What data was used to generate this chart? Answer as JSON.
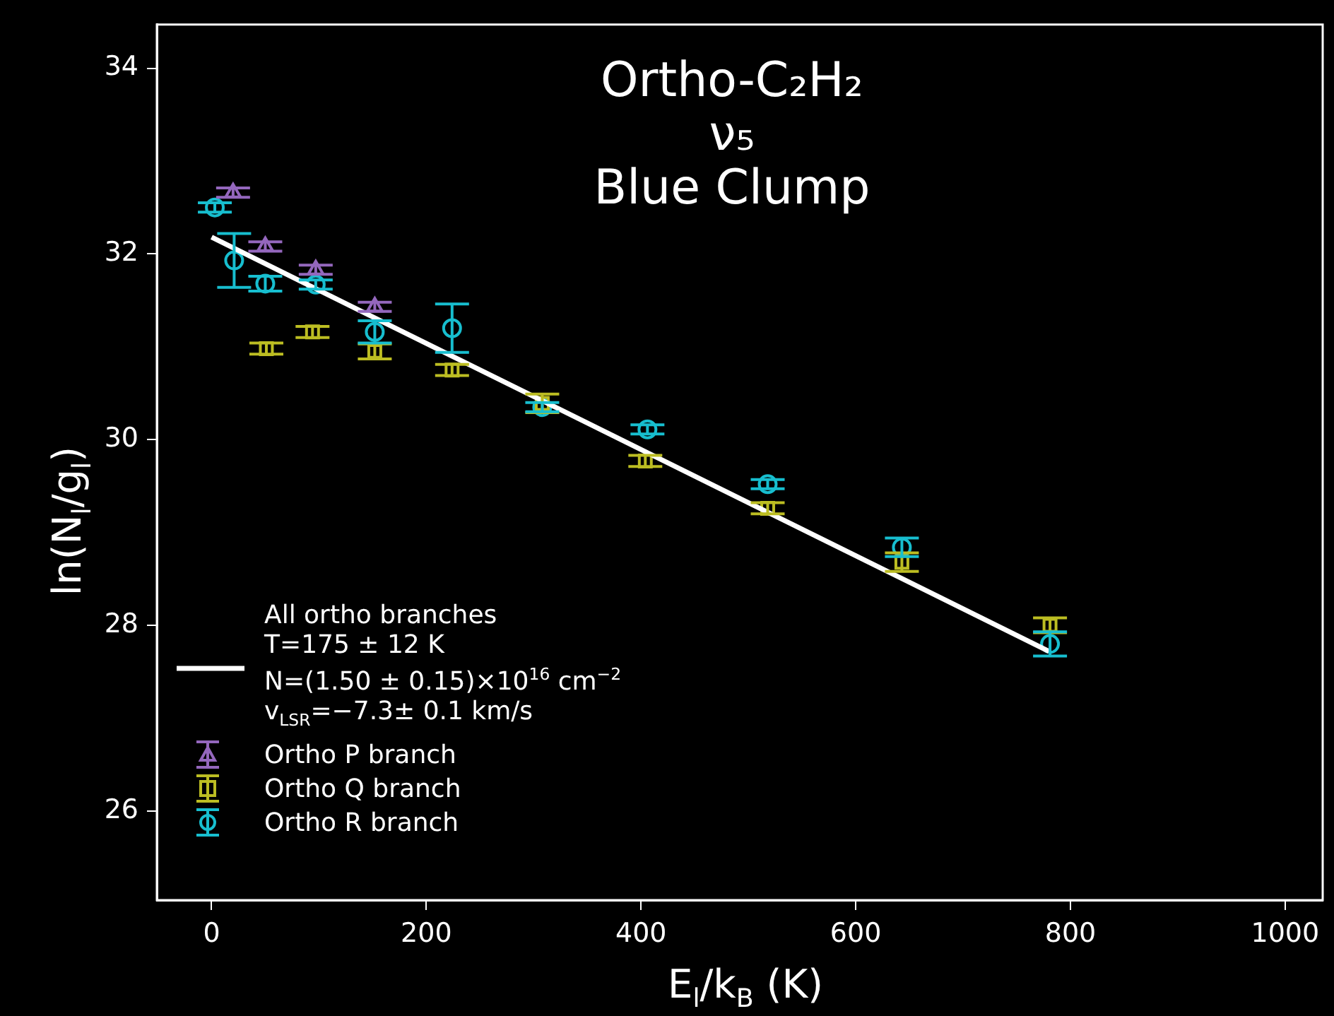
{
  "chart_data": {
    "type": "scatter",
    "title": "Ortho-C₂H₂\nν₅\nBlue Clump",
    "xlabel": "E$_{l}$/k$_{B}$ (K)",
    "ylabel": "ln(N$_{l}$/g$_{l}$)",
    "xlim": [
      -51,
      1035
    ],
    "ylim": [
      25.04,
      34.47
    ],
    "xticks": [
      0,
      200,
      400,
      600,
      800,
      1000
    ],
    "yticks": [
      26,
      28,
      30,
      32,
      34
    ],
    "grid": false,
    "legend": "lower left",
    "series": [
      {
        "name": "All ortho branches\nT=175 ± 12 K\nN=(1.50 ± 0.15)×10$^{16}$ cm$^{−2}$\n v$_{LSR}$=−7.3± 0.1 km/s",
        "type": "line",
        "color": "#ffffff",
        "marker": "none",
        "x": [
          0,
          780
        ],
        "values": [
          32.18,
          27.72
        ]
      },
      {
        "name": "Ortho P branch",
        "color": "#9467bd",
        "marker": "triangle",
        "x": [
          20,
          50,
          97,
          152
        ],
        "values": [
          32.66,
          32.08,
          31.83,
          31.43
        ],
        "errors": [
          0.05,
          0.05,
          0.05,
          0.05
        ]
      },
      {
        "name": "Ortho Q branch",
        "color": "#bcbd22",
        "marker": "square",
        "x": [
          51,
          94,
          152,
          224,
          308,
          404,
          518,
          643,
          781
        ],
        "values": [
          30.98,
          31.16,
          30.95,
          30.75,
          30.39,
          29.77,
          29.26,
          28.68,
          28.0
        ],
        "errors": [
          0.06,
          0.06,
          0.08,
          0.06,
          0.1,
          0.06,
          0.06,
          0.1,
          0.08
        ]
      },
      {
        "name": "Ortho R branch",
        "color": "#17becf",
        "marker": "circle",
        "x": [
          3,
          21,
          50,
          97,
          152,
          224,
          308,
          406,
          518,
          643,
          781
        ],
        "values": [
          32.5,
          31.93,
          31.68,
          31.67,
          31.16,
          31.2,
          30.35,
          30.11,
          29.52,
          28.84,
          27.8
        ],
        "errors": [
          0.05,
          0.29,
          0.08,
          0.05,
          0.12,
          0.26,
          0.05,
          0.05,
          0.05,
          0.1,
          0.13
        ]
      }
    ]
  }
}
